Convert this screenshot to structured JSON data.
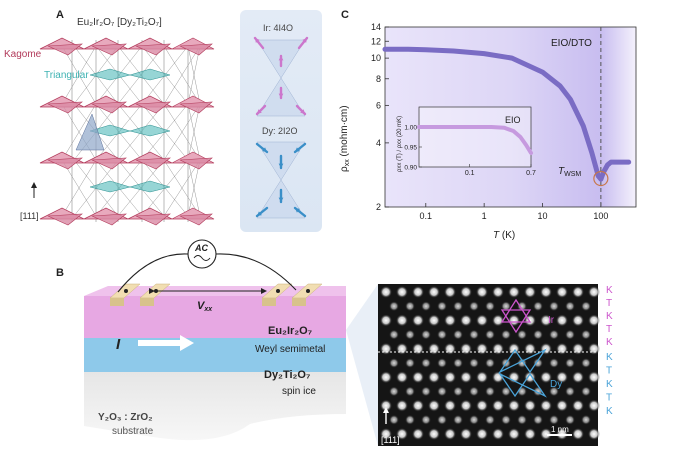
{
  "panels": {
    "a": {
      "letter": "A",
      "title": "Eu₂Ir₂O₇ [Dy₂Ti₂O₇]",
      "kagome_label": "Kagome",
      "triangular_label": "Triangular",
      "axis_label": "[111]",
      "ir_label": "Ir: 4I4O",
      "dy_label": "Dy: 2I2O"
    },
    "b": {
      "letter": "B",
      "ac_label": "AC",
      "voltage_label": "V",
      "voltage_sub": "xx",
      "current_label": "I",
      "eio_name": "Eu₂Ir₂O₇",
      "eio_desc": "Weyl semimetal",
      "dto_name": "Dy₂Ti₂O₇",
      "dto_desc": "spin ice",
      "substrate_name": "Y₂O₃ : ZrO₂",
      "substrate_desc": "substrate",
      "stem_ir_label": "Ir",
      "stem_dy_label": "Dy",
      "stem_axis_label": "[111]",
      "scale_label": "1 nm",
      "stacking_upper": [
        "K",
        "T",
        "K",
        "T",
        "K"
      ],
      "stacking_lower": [
        "K",
        "T",
        "K",
        "T",
        "K"
      ]
    },
    "c": {
      "letter": "C",
      "annotation": "EIO/DTO",
      "twsm_label": "T",
      "twsm_sub": "WSM",
      "xlabel_italic": "T",
      "xlabel_unit": " (K)",
      "ylabel_rho": "ρ",
      "ylabel_sub": "xx",
      "ylabel_unit": " (mohm·cm)",
      "inset_label": "EIO",
      "inset_ylabel": "ρxx (T) / ρxx (20 mK)"
    }
  },
  "colors": {
    "kagome": "#b23a5a",
    "triangular": "#3fb3b3",
    "eio_layer": "#e7a8e3",
    "dto_layer": "#8ec9ea",
    "curve_main": "#7a6cc4",
    "curve_inset": "#c69adf",
    "ir_arrow": "#cc77cc",
    "dy_arrow": "#3a8fc8",
    "twsm_circle": "#c8774a"
  },
  "chart_data": [
    {
      "type": "line",
      "title": "",
      "xlabel": "T (K)",
      "ylabel": "ρxx (mohm·cm)",
      "xscale": "log",
      "yscale": "log",
      "xlim": [
        0.02,
        400
      ],
      "ylim": [
        2,
        14
      ],
      "xticks": [
        0.1,
        1,
        10,
        100
      ],
      "xtick_labels": [
        "0.1",
        "1",
        "10",
        "100"
      ],
      "yticks": [
        2,
        4,
        6,
        8,
        10,
        12,
        14
      ],
      "ytick_labels": [
        "2",
        "4",
        "6",
        "8",
        "10",
        "12",
        "14"
      ],
      "vline_x": 100,
      "grid": false,
      "series": [
        {
          "x": [
            0.02,
            0.05,
            0.1,
            0.3,
            1,
            3,
            10,
            20,
            30,
            50,
            70,
            90,
            100,
            110,
            130,
            150,
            200,
            300
          ],
          "y": [
            11.0,
            11.0,
            10.95,
            10.8,
            10.5,
            10.0,
            8.6,
            7.4,
            6.4,
            4.8,
            3.6,
            2.8,
            2.7,
            2.9,
            3.15,
            3.25,
            3.25,
            3.25
          ]
        }
      ]
    },
    {
      "type": "line",
      "title": "",
      "xlabel": "",
      "ylabel": "ρxx (T) / ρxx (20 mK)",
      "xscale": "log",
      "xlim": [
        0.02,
        0.7
      ],
      "ylim": [
        0.9,
        1.05
      ],
      "xticks": [
        0.1,
        0.7
      ],
      "xtick_labels": [
        "0.1",
        "0.7"
      ],
      "yticks": [
        0.9,
        0.95,
        1.0
      ],
      "ytick_labels": [
        "0.90",
        "0.95",
        "1.00"
      ],
      "series": [
        {
          "x": [
            0.02,
            0.05,
            0.1,
            0.2,
            0.3,
            0.4,
            0.5,
            0.6,
            0.7
          ],
          "y": [
            1.0,
            1.0,
            1.0,
            1.0,
            0.998,
            0.99,
            0.975,
            0.955,
            0.935
          ]
        }
      ]
    }
  ]
}
